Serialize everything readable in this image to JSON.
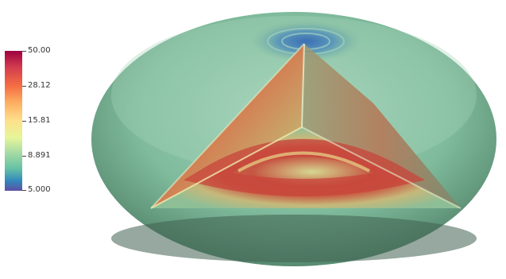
{
  "colorbar": {
    "ticks": [
      "50.00",
      "28.12",
      "15.81",
      "8.891",
      "5.000"
    ],
    "colormap": [
      "#9e0142",
      "#d53e4f",
      "#f46d43",
      "#fdae61",
      "#fee08b",
      "#e6f598",
      "#abdda4",
      "#66c2a5",
      "#3288bd",
      "#5e4fa2"
    ]
  },
  "scene": {
    "object": "sphere-cutaway",
    "shell_color": "#7fbfa0",
    "inner_ring_color": "#c8443b"
  }
}
